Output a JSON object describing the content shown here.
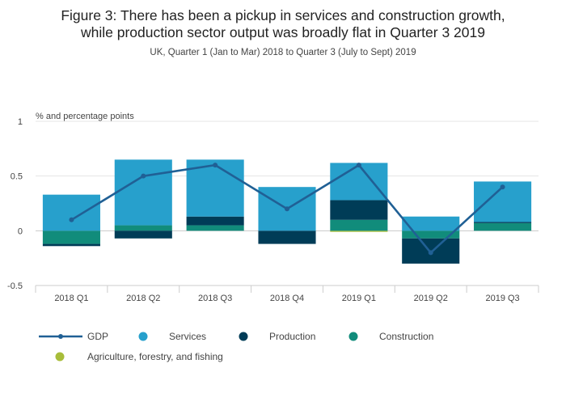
{
  "chart_data": {
    "type": "bar",
    "title_lines": [
      "Figure 3: There has been a pickup in services and construction growth,",
      "while production sector output was broadly flat in Quarter 3 2019"
    ],
    "subtitle": "UK, Quarter 1 (Jan to Mar) 2018 to Quarter 3 (July to Sept) 2019",
    "ylabel": "% and percentage points",
    "ylim": [
      -0.5,
      1
    ],
    "yticks": [
      -0.5,
      0,
      0.5,
      1
    ],
    "yticklabels": [
      "-0.5",
      "0",
      "0.5",
      "1"
    ],
    "grid": true,
    "stacked": true,
    "legend_position": "bottom",
    "categories": [
      "2018 Q1",
      "2018 Q2",
      "2018 Q3",
      "2018 Q4",
      "2019 Q1",
      "2019 Q2",
      "2019 Q3"
    ],
    "series": [
      {
        "name": "Agriculture, forestry, and fishing",
        "kind": "bar",
        "color": "#a8bd3a",
        "values": [
          0.0,
          0.0,
          0.0,
          0.0,
          -0.01,
          0.0,
          0.0
        ]
      },
      {
        "name": "Construction",
        "kind": "bar",
        "color": "#118c7b",
        "values": [
          -0.12,
          0.05,
          0.05,
          0.0,
          0.1,
          -0.07,
          0.07
        ]
      },
      {
        "name": "Production",
        "kind": "bar",
        "color": "#003c57",
        "values": [
          -0.02,
          -0.07,
          0.08,
          -0.12,
          0.18,
          -0.23,
          0.01
        ]
      },
      {
        "name": "Services",
        "kind": "bar",
        "color": "#27a0cc",
        "values": [
          0.33,
          0.6,
          0.52,
          0.4,
          0.34,
          0.13,
          0.37
        ]
      },
      {
        "name": "GDP",
        "kind": "line",
        "color": "#206095",
        "values": [
          0.1,
          0.5,
          0.6,
          0.2,
          0.6,
          -0.2,
          0.4
        ]
      }
    ],
    "legend_order": [
      "GDP",
      "Services",
      "Production",
      "Construction",
      "Agriculture, forestry, and fishing"
    ]
  }
}
